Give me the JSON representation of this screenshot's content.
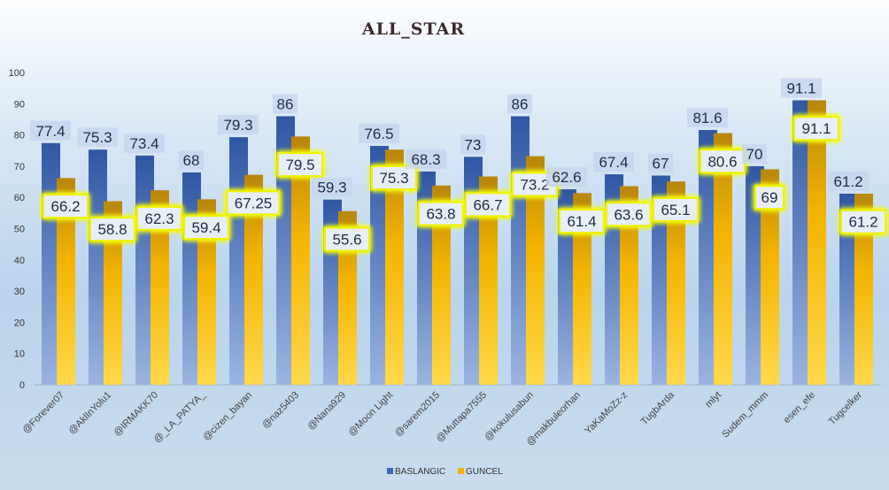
{
  "chart_data": {
    "type": "bar",
    "title": "ALL_STAR",
    "xlabel": "",
    "ylabel": "",
    "ylim": [
      0,
      100
    ],
    "yticks": [
      0,
      10,
      20,
      30,
      40,
      50,
      60,
      70,
      80,
      90,
      100
    ],
    "legend": "bottom",
    "grid": false,
    "categories": [
      "@Forever07",
      "@AklInYolu1",
      "@IRMAKK70",
      "@_LA_PATYA_",
      "@cizen_bayan",
      "@naz5403",
      "@Nana929",
      "@Moon Light",
      "@sarem2015",
      "@Muttapa7555",
      "@kokulusabun",
      "@makbuleorhan",
      "YaKaMoZz-z",
      "TugbArda",
      "mlyt",
      "Sudem_mmm",
      "esen_efe",
      "Tugcelker"
    ],
    "series": [
      {
        "name": "BASLANGIC",
        "color": "#3f66b0",
        "values": [
          77.4,
          75.3,
          73.4,
          68,
          79.3,
          86,
          59.3,
          76.5,
          68.3,
          73,
          86,
          62.6,
          67.4,
          67,
          81.6,
          70,
          91.1,
          61.2
        ]
      },
      {
        "name": "GUNCEL",
        "color": "#f2b200",
        "values": [
          66.2,
          58.8,
          62.3,
          59.4,
          67.25,
          79.5,
          55.6,
          75.3,
          63.8,
          66.7,
          73.2,
          61.4,
          63.6,
          65.1,
          80.6,
          69,
          91.1,
          61.2
        ]
      }
    ]
  }
}
